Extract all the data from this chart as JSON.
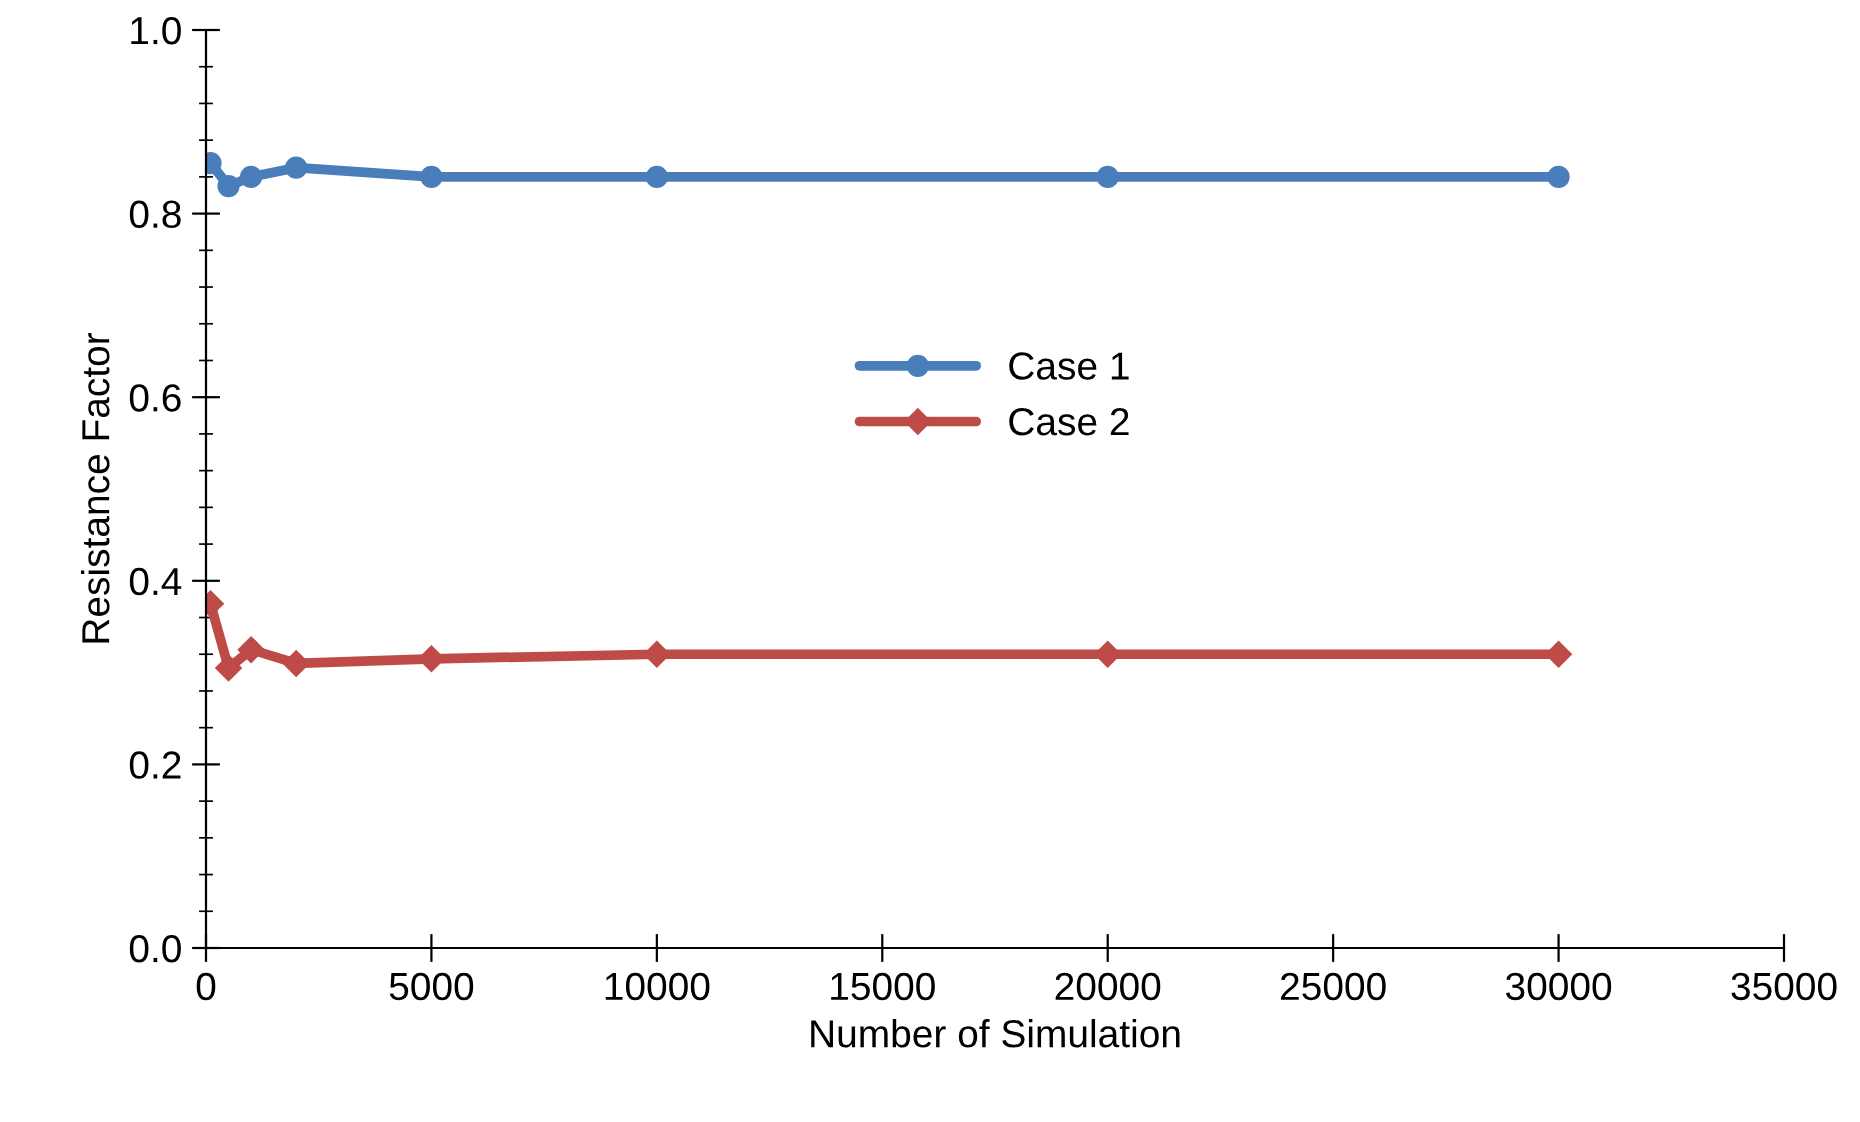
{
  "chart_data": {
    "type": "line",
    "xlabel": "Number of Simulation",
    "ylabel": "Resistance Factor",
    "x": [
      100,
      500,
      1000,
      2000,
      5000,
      10000,
      20000,
      30000
    ],
    "series": [
      {
        "name": "Case 1",
        "color": "#4a7ebb",
        "values": [
          0.855,
          0.83,
          0.84,
          0.85,
          0.84,
          0.84,
          0.84,
          0.84
        ]
      },
      {
        "name": "Case 2",
        "color": "#be4b48",
        "values": [
          0.375,
          0.305,
          0.325,
          0.31,
          0.315,
          0.32,
          0.32,
          0.32
        ],
        "marker": "diamond"
      }
    ],
    "marker": "circle",
    "line_style": "solid",
    "grid": false,
    "legend": "center",
    "xlim": [
      0,
      35000
    ],
    "xticks": [
      0,
      5000,
      10000,
      15000,
      20000,
      25000,
      30000,
      35000
    ],
    "ylim": [
      0,
      1
    ],
    "yticks": [
      {
        "value": 0,
        "label": "0.0"
      },
      0.2,
      0.4,
      0.6,
      0.8,
      {
        "value": 1,
        "label": "1.0"
      }
    ]
  }
}
